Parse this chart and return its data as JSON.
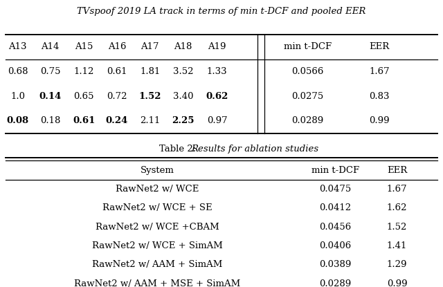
{
  "title_top": "TVspoof 2019 LA track in terms of min t-DCF and pooled EER",
  "top_table": {
    "col_headers": [
      "A13",
      "A14",
      "A15",
      "A16",
      "A17",
      "A18",
      "A19",
      "min t-DCF",
      "EER"
    ],
    "rows": [
      {
        "cells": [
          "0.68",
          "0.75",
          "1.12",
          "0.61",
          "1.81",
          "3.52",
          "1.33",
          "0.0566",
          "1.67"
        ],
        "bold": []
      },
      {
        "cells": [
          "1.0",
          "0.14",
          "0.65",
          "0.72",
          "1.52",
          "3.40",
          "0.62",
          "0.0275",
          "0.83"
        ],
        "bold": [
          1,
          4,
          6
        ]
      },
      {
        "cells": [
          "0.08",
          "0.18",
          "0.61",
          "0.24",
          "2.11",
          "2.25",
          "0.97",
          "0.0289",
          "0.99"
        ],
        "bold": [
          0,
          2,
          3,
          5
        ]
      }
    ]
  },
  "table2": {
    "col_headers": [
      "System",
      "min t-DCF",
      "EER"
    ],
    "rows": [
      [
        "RawNet2 w/ WCE",
        "0.0475",
        "1.67"
      ],
      [
        "RawNet2 w/ WCE + SE",
        "0.0412",
        "1.62"
      ],
      [
        "RawNet2 w/ WCE +CBAM",
        "0.0456",
        "1.52"
      ],
      [
        "RawNet2 w/ WCE + SimAM",
        "0.0406",
        "1.41"
      ],
      [
        "RawNet2 w/ AAM + SimAM",
        "0.0389",
        "1.29"
      ],
      [
        "RawNet2 w/ AAM + MSE + SimAM",
        "0.0289",
        "0.99"
      ]
    ]
  },
  "bg_color": "#ffffff",
  "text_color": "#000000",
  "font_size": 9.5
}
